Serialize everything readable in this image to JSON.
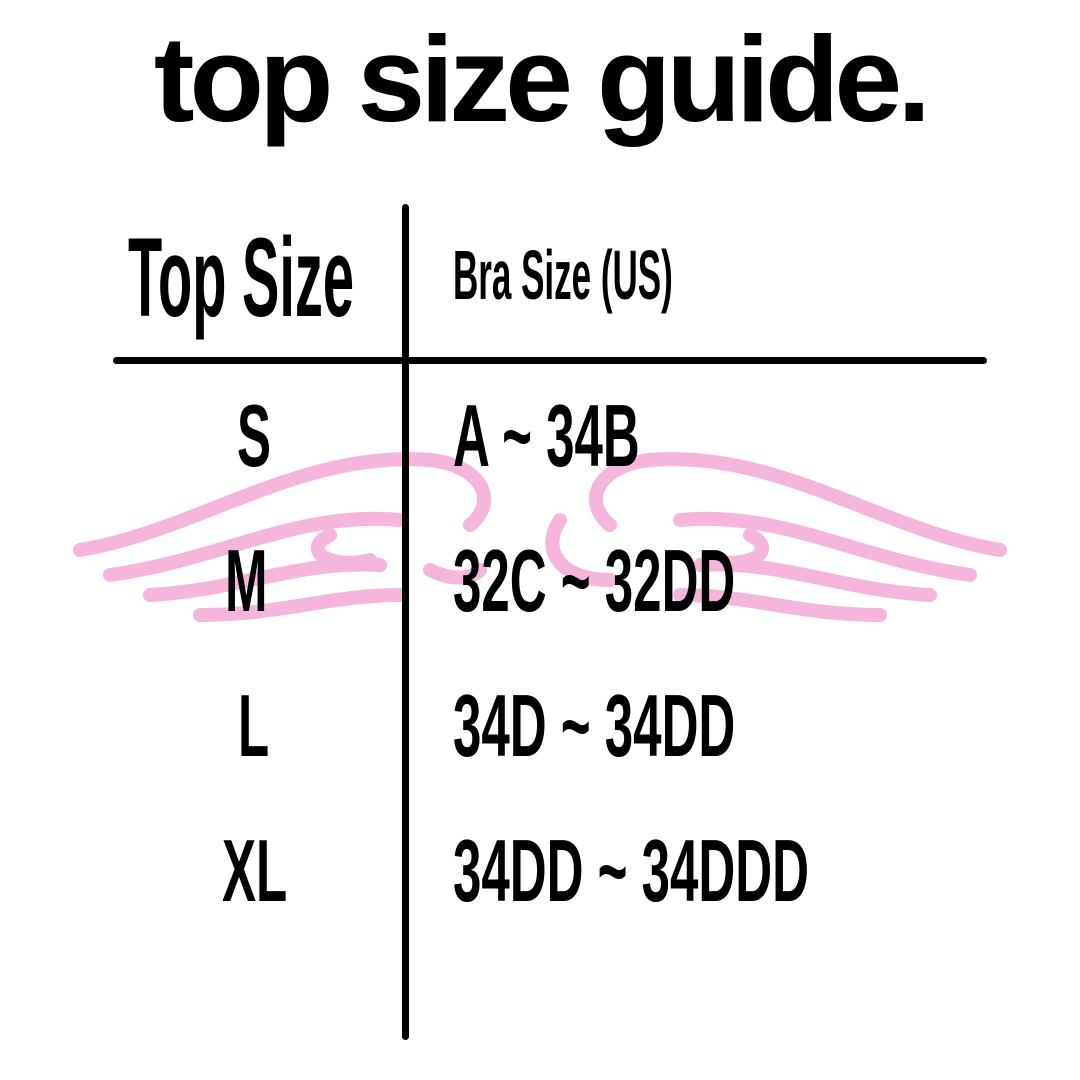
{
  "title": "top size guide.",
  "table": {
    "headers": [
      "Top Size",
      "Bra Size (US)"
    ],
    "rows": [
      {
        "size": "S",
        "bra": "A ~ 34B"
      },
      {
        "size": "M",
        "bra": "32C ~ 32DD"
      },
      {
        "size": "L",
        "bra": "34D ~ 34DD"
      },
      {
        "size": "XL",
        "bra": "34DD ~ 34DDD"
      }
    ]
  },
  "decoration": {
    "icon": "angel-wings-icon",
    "color": "#f6b6dc"
  }
}
